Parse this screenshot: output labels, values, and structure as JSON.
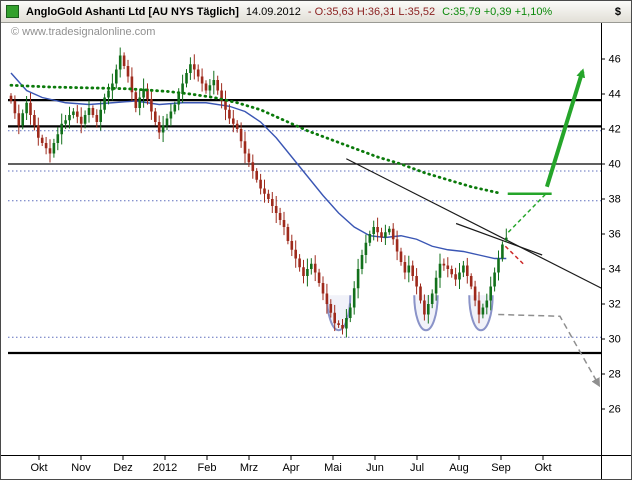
{
  "header": {
    "title": "AngloGold Ashanti Ltd [AU NYS Täglich]",
    "date": "14.09.2012",
    "ohl_text": "- O:35,63 H:36,31 L:35,52",
    "close_text": "C:35,79 +0,39 +1,10%",
    "axis_unit": "$"
  },
  "watermark": "© www.tradesignalonline.com",
  "colors": {
    "candle_up": "#12701b",
    "candle_down": "#9e2a1c",
    "ma_long": "#0b7a0b",
    "ma_mid": "#3a56b4",
    "trendline": "#1a1a1a",
    "support_solid": "#000000",
    "support_dotted": "#5f6fbe",
    "bullish_green": "#25a52a",
    "bearish_red": "#cc2a2a",
    "gray_scenario": "#8f8f8f",
    "cup_outline": "#8a93c8",
    "axis_text": "#000000",
    "watermark_text": "#909090"
  },
  "chart_data": {
    "type": "candlestick",
    "instrument": "AngloGold Ashanti Ltd",
    "symbol": "AU NYS",
    "interval": "Täglich",
    "last_quote": {
      "date": "14.09.2012",
      "open": 35.63,
      "high": 36.31,
      "low": 35.52,
      "close": 35.79,
      "change": "+0,39",
      "change_pct": "+1,10%"
    },
    "y_unit": "$",
    "ylim": [
      23.4,
      48.1
    ],
    "y_ticks": [
      46,
      44,
      42,
      40,
      38,
      36,
      34,
      32,
      30,
      28,
      26
    ],
    "x_labels": [
      "Okt",
      "Nov",
      "Dez",
      "2012",
      "Feb",
      "Mrz",
      "Apr",
      "Mai",
      "Jun",
      "Jul",
      "Aug",
      "Sep",
      "Okt"
    ],
    "first_open": 43.9,
    "closes": [
      43.6,
      42.9,
      42.2,
      42.9,
      43.5,
      42.8,
      42.2,
      41.5,
      41.2,
      40.9,
      40.6,
      41.2,
      41.7,
      42.3,
      42.5,
      42.8,
      43.0,
      42.7,
      42.3,
      42.8,
      43.2,
      42.8,
      42.4,
      43.1,
      43.8,
      44.2,
      44.6,
      45.4,
      46.2,
      45.6,
      45.0,
      44.1,
      43.2,
      43.8,
      44.3,
      43.7,
      43.0,
      42.4,
      41.8,
      42.2,
      42.6,
      43.0,
      43.4,
      44.0,
      44.6,
      45.2,
      45.7,
      45.4,
      45.0,
      44.6,
      44.2,
      44.5,
      44.8,
      44.2,
      43.6,
      43.1,
      42.6,
      42.3,
      42.0,
      41.3,
      40.6,
      40.1,
      39.6,
      39.1,
      38.6,
      38.3,
      38.0,
      37.6,
      37.2,
      36.8,
      36.4,
      35.6,
      35.1,
      34.6,
      34.1,
      33.6,
      34.0,
      34.3,
      33.8,
      33.2,
      32.6,
      32.0,
      31.5,
      30.9,
      30.8,
      30.6,
      31.2,
      31.8,
      32.9,
      34.0,
      34.8,
      35.5,
      36.0,
      36.4,
      36.1,
      35.8,
      36.1,
      36.3,
      35.7,
      35.0,
      34.4,
      33.8,
      34.2,
      33.6,
      33.0,
      32.2,
      31.4,
      32.0,
      32.6,
      33.5,
      34.3,
      34.2,
      34.0,
      33.7,
      33.4,
      33.8,
      34.2,
      33.6,
      33.0,
      32.2,
      31.4,
      31.8,
      32.2,
      33.0,
      33.8,
      34.6,
      35.4,
      35.79
    ],
    "ma_long_green_dotted": [
      [
        0,
        44.5
      ],
      [
        10,
        44.4
      ],
      [
        20,
        44.35
      ],
      [
        30,
        44.3
      ],
      [
        40,
        44.15
      ],
      [
        46,
        44.0
      ],
      [
        52,
        43.8
      ],
      [
        58,
        43.5
      ],
      [
        64,
        43.1
      ],
      [
        70,
        42.5
      ],
      [
        76,
        41.9
      ],
      [
        82,
        41.4
      ],
      [
        88,
        40.9
      ],
      [
        94,
        40.4
      ],
      [
        100,
        40.0
      ],
      [
        106,
        39.5
      ],
      [
        112,
        39.1
      ],
      [
        118,
        38.7
      ],
      [
        122,
        38.5
      ],
      [
        125,
        38.35
      ]
    ],
    "ma_mid_blue": [
      [
        0,
        45.2
      ],
      [
        4,
        44.2
      ],
      [
        8,
        43.8
      ],
      [
        14,
        43.5
      ],
      [
        20,
        43.4
      ],
      [
        26,
        43.5
      ],
      [
        32,
        43.6
      ],
      [
        38,
        43.4
      ],
      [
        44,
        43.5
      ],
      [
        50,
        43.5
      ],
      [
        56,
        43.3
      ],
      [
        60,
        43.0
      ],
      [
        64,
        42.4
      ],
      [
        68,
        41.5
      ],
      [
        72,
        40.4
      ],
      [
        76,
        39.3
      ],
      [
        80,
        38.2
      ],
      [
        84,
        37.2
      ],
      [
        88,
        36.4
      ],
      [
        92,
        35.9
      ],
      [
        96,
        35.8
      ],
      [
        100,
        35.9
      ],
      [
        104,
        35.7
      ],
      [
        108,
        35.3
      ],
      [
        112,
        35.1
      ],
      [
        116,
        35.0
      ],
      [
        120,
        34.8
      ],
      [
        124,
        34.6
      ],
      [
        127,
        34.6
      ]
    ],
    "hlines_solid": [
      {
        "price": 43.65,
        "weight": 2.2
      },
      {
        "price": 42.15,
        "weight": 2.2
      },
      {
        "price": 40.0,
        "weight": 1.2
      },
      {
        "price": 29.2,
        "weight": 2.2
      }
    ],
    "hlines_dotted": [
      41.9,
      39.6,
      37.9,
      30.1
    ],
    "trendlines": [
      {
        "x1": 0.57,
        "p1": 40.3,
        "x2": 1.0,
        "p2": 32.9
      },
      {
        "x1": 0.755,
        "p1": 36.6,
        "x2": 0.9,
        "p2": 34.8
      }
    ],
    "breakout_level_green": {
      "x1": 0.842,
      "x2": 0.916,
      "price": 38.3
    },
    "green_arrow": {
      "x1": 0.908,
      "p1": 38.7,
      "x2": 0.968,
      "p2": 45.3
    },
    "green_dashed": {
      "x1": 0.843,
      "p1": 36.1,
      "x2": 0.905,
      "p2": 38.25
    },
    "red_dashed": {
      "x1": 0.838,
      "p1": 35.3,
      "x2": 0.868,
      "p2": 34.3
    },
    "gray_dashed_arrow": [
      [
        0.826,
        31.4
      ],
      [
        0.93,
        31.3
      ],
      [
        0.995,
        27.4
      ]
    ],
    "cups": [
      {
        "center_bar": 84,
        "rx_bars": 3.0,
        "top": 32.5,
        "bottom": 30.5
      },
      {
        "center_bar": 106.4,
        "rx_bars": 3.0,
        "top": 32.5,
        "bottom": 30.5
      },
      {
        "center_bar": 120.5,
        "rx_bars": 3.0,
        "top": 32.5,
        "bottom": 30.5
      }
    ]
  }
}
